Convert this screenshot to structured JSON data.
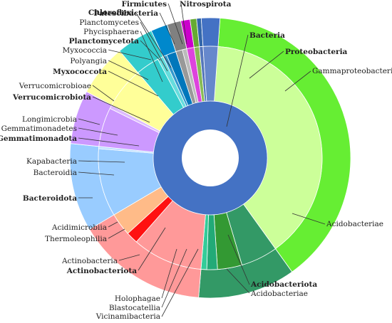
{
  "chart_data": {
    "type": "sunburst",
    "title": "",
    "rings": [
      "kingdom",
      "phylum",
      "class"
    ],
    "kingdom": {
      "name": "Bacteria",
      "value": 100,
      "color": "#4472C4"
    },
    "phyla": [
      {
        "name": "Proteobacteria",
        "value": 36.5,
        "color": "#66EE33",
        "classes": [
          {
            "name": "Gammaproteobacteria",
            "value": 36.5,
            "color": "#CCFF99"
          }
        ]
      },
      {
        "name": "",
        "value": 0.001,
        "color": "#44CC33",
        "classes": [
          {
            "name": "Acidobacteriae",
            "value": 0.001,
            "color": "#CCFF99"
          }
        ]
      },
      {
        "name": "Acidobacteriota",
        "value": 10.5,
        "color": "#339966",
        "classes": [
          {
            "name": "Acidobacteriae",
            "value": 0.001,
            "color": "#33BB55"
          },
          {
            "name": "Acidobacteriae",
            "value": 4.5,
            "color": "#339966"
          },
          {
            "name": "Vicinamibacteria",
            "value": 3.0,
            "color": "#339933"
          },
          {
            "name": "Blastocatellia",
            "value": 1.3,
            "color": "#22AA77"
          },
          {
            "name": "Holophagae",
            "value": 0.7,
            "color": "#33CC99"
          }
        ]
      },
      {
        "name": "Actinobacteriota",
        "value": 14.2,
        "color": "#FF9999",
        "classes": [
          {
            "name": "Actinobacteria",
            "value": 9.5,
            "color": "#FF9999"
          },
          {
            "name": "Thermoleophilia",
            "value": 1.6,
            "color": "#FF1111"
          },
          {
            "name": "Acidimicrobiia",
            "value": 3.1,
            "color": "#FFBB88"
          }
        ]
      },
      {
        "name": "Bacteroidota",
        "value": 9.5,
        "color": "#99CCFF",
        "classes": [
          {
            "name": "Bacteroidia",
            "value": 9.2,
            "color": "#99CCFF"
          },
          {
            "name": "Kapabacteria",
            "value": 0.3,
            "color": "#BBDDFF"
          }
        ]
      },
      {
        "name": "Gemmatimonadota",
        "value": 5.8,
        "color": "#CC99FF",
        "classes": [
          {
            "name": "Gemmatimonadetes",
            "value": 5.3,
            "color": "#CC99FF"
          },
          {
            "name": "Longimicrobia",
            "value": 0.5,
            "color": "#DDBBFF"
          }
        ]
      },
      {
        "name": "Verrucomicrobiota",
        "value": 5.6,
        "color": "#FFFF99",
        "classes": [
          {
            "name": "Verrucomicrobiae",
            "value": 5.6,
            "color": "#FFFF99"
          }
        ]
      },
      {
        "name": "Myxococcota",
        "value": 4.0,
        "color": "#33CCCC",
        "classes": [
          {
            "name": "Polyangia",
            "value": 3.2,
            "color": "#33CCCC"
          },
          {
            "name": "Myxococcia",
            "value": 0.8,
            "color": "#66DDDD"
          }
        ]
      },
      {
        "name": "Planctomycetota",
        "value": 1.8,
        "color": "#0088CC",
        "classes": [
          {
            "name": "Phycisphaerae",
            "value": 0.5,
            "color": "#3399CC"
          },
          {
            "name": "Planctomycetes",
            "value": 1.3,
            "color": "#0077BB"
          }
        ]
      },
      {
        "name": "Chloroflexi",
        "value": 1.5,
        "color": "#808080",
        "classes": [
          {
            "name": "",
            "value": 0.9,
            "color": "#999999"
          },
          {
            "name": "",
            "value": 0.6,
            "color": "#BBBBBB"
          }
        ]
      },
      {
        "name": "Patescibacteria",
        "value": 1.0,
        "color": "#CC00CC",
        "classes": [
          {
            "name": "",
            "value": 1.0,
            "color": "#DD44DD"
          }
        ]
      },
      {
        "name": "Firmicutes",
        "value": 0.7,
        "color": "#66AA33",
        "classes": [
          {
            "name": "",
            "value": 0.7,
            "color": "#88BB55"
          }
        ]
      },
      {
        "name": "Nitrospirota",
        "value": 0.5,
        "color": "#3366AA",
        "classes": [
          {
            "name": "",
            "value": 0.5,
            "color": "#5577BB"
          }
        ]
      },
      {
        "name": "",
        "value": 2.0,
        "color": "#4472C4",
        "classes": [
          {
            "name": "",
            "value": 2.0,
            "color": "#6688CC"
          }
        ]
      }
    ],
    "labels": [
      {
        "text": "Bacteria",
        "bold": true
      },
      {
        "text": "Proteobacteria",
        "bold": true
      },
      {
        "text": "Gammaproteobacteria",
        "bold": false
      },
      {
        "text": "Acidobacteriae",
        "bold": false
      },
      {
        "text": "Acidobacteriota",
        "bold": true
      },
      {
        "text": "Acidobacteriae",
        "bold": false
      },
      {
        "text": "Vicinamibacteria",
        "bold": false
      },
      {
        "text": "Blastocatellia",
        "bold": false
      },
      {
        "text": "Holophagae",
        "bold": false
      },
      {
        "text": "Actinobacteriota",
        "bold": true
      },
      {
        "text": "Actinobacteria",
        "bold": false
      },
      {
        "text": "Thermoleophilia",
        "bold": false
      },
      {
        "text": "Acidimicrobiia",
        "bold": false
      },
      {
        "text": "Bacteroidota",
        "bold": true
      },
      {
        "text": "Bacteroidia",
        "bold": false
      },
      {
        "text": "Kapabacteria",
        "bold": false
      },
      {
        "text": "Gemmatimonadota",
        "bold": true
      },
      {
        "text": "Gemmatimonadetes",
        "bold": false
      },
      {
        "text": "Longimicrobia",
        "bold": false
      },
      {
        "text": "Verrucomicrobiota",
        "bold": true
      },
      {
        "text": "Verrucomicrobioae",
        "bold": false
      },
      {
        "text": "Myxococcota",
        "bold": true
      },
      {
        "text": "Polyangia",
        "bold": false
      },
      {
        "text": "Myxococcia",
        "bold": false
      },
      {
        "text": "Planctomycetota",
        "bold": true
      },
      {
        "text": "Phycisphaerae",
        "bold": false
      },
      {
        "text": "Planctomycetes",
        "bold": false
      },
      {
        "text": "Chloroflexi",
        "bold": true
      },
      {
        "text": "Patescibacteria",
        "bold": true
      },
      {
        "text": "Firmicutes",
        "bold": true
      },
      {
        "text": "Nitrospirota",
        "bold": true
      }
    ]
  }
}
